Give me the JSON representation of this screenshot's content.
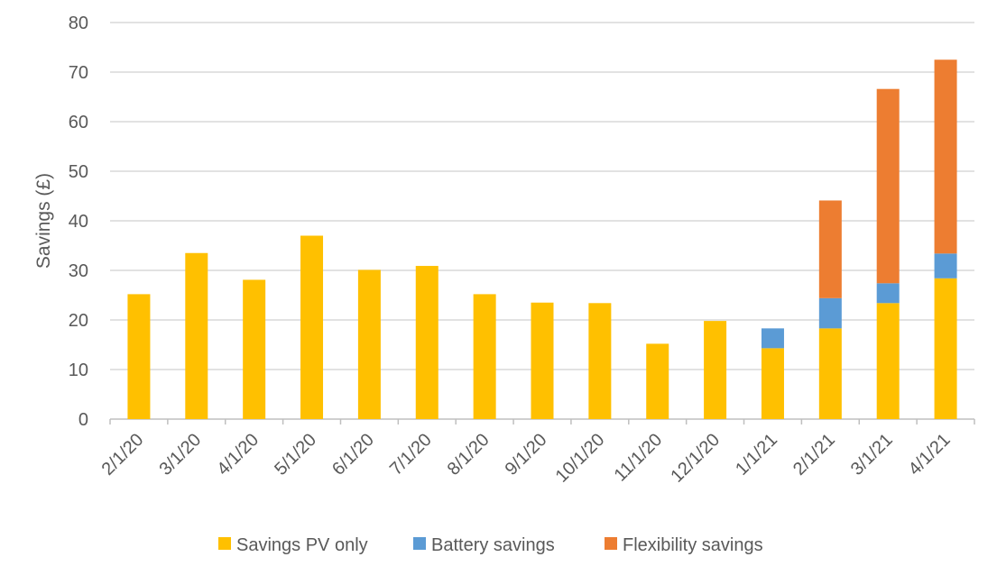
{
  "chart_data": {
    "type": "bar",
    "stacked": true,
    "title": "",
    "xlabel": "",
    "ylabel": "Savings (£)",
    "ylim": [
      0,
      80
    ],
    "yticks": [
      0,
      10,
      20,
      30,
      40,
      50,
      60,
      70,
      80
    ],
    "grid": true,
    "legend_position": "bottom",
    "categories": [
      "2/1/20",
      "3/1/20",
      "4/1/20",
      "5/1/20",
      "6/1/20",
      "7/1/20",
      "8/1/20",
      "9/1/20",
      "10/1/20",
      "11/1/20",
      "12/1/20",
      "1/1/21",
      "2/1/21",
      "3/1/21",
      "4/1/21"
    ],
    "series": [
      {
        "name": "Savings PV only",
        "color": "#FFC000",
        "values": [
          25.2,
          33.5,
          28.1,
          37.0,
          30.1,
          30.9,
          25.2,
          23.5,
          23.4,
          15.2,
          19.8,
          14.3,
          18.3,
          23.4,
          28.4
        ]
      },
      {
        "name": "Battery savings",
        "color": "#5B9BD5",
        "values": [
          0,
          0,
          0,
          0,
          0,
          0,
          0,
          0,
          0,
          0,
          0,
          4.0,
          6.1,
          4.0,
          5.0
        ]
      },
      {
        "name": "Flexibility savings",
        "color": "#ED7D31",
        "values": [
          0,
          0,
          0,
          0,
          0,
          0,
          0,
          0,
          0,
          0,
          0,
          0,
          19.7,
          39.2,
          39.1
        ]
      }
    ]
  }
}
